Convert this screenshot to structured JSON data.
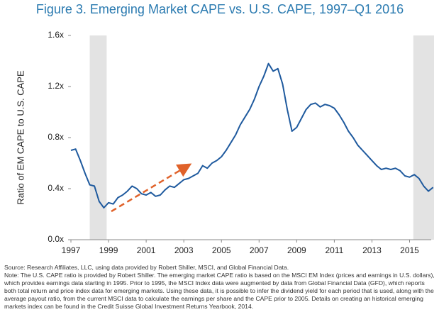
{
  "chart_data": {
    "type": "line",
    "title": "Figure 3. Emerging Market CAPE vs. U.S. CAPE, 1997–Q1 2016",
    "y_label": "Ratio of EM CAPE to U.S. CAPE",
    "x": [
      1997,
      1997.25,
      1997.5,
      1997.75,
      1998,
      1998.25,
      1998.5,
      1998.75,
      1999,
      1999.25,
      1999.5,
      1999.75,
      2000,
      2000.25,
      2000.5,
      2000.75,
      2001,
      2001.25,
      2001.5,
      2001.75,
      2002,
      2002.25,
      2002.5,
      2002.75,
      2003,
      2003.25,
      2003.5,
      2003.75,
      2004,
      2004.25,
      2004.5,
      2004.75,
      2005,
      2005.25,
      2005.5,
      2005.75,
      2006,
      2006.25,
      2006.5,
      2006.75,
      2007,
      2007.25,
      2007.5,
      2007.75,
      2008,
      2008.25,
      2008.5,
      2008.75,
      2009,
      2009.25,
      2009.5,
      2009.75,
      2010,
      2010.25,
      2010.5,
      2010.75,
      2011,
      2011.25,
      2011.5,
      2011.75,
      2012,
      2012.25,
      2012.5,
      2012.75,
      2013,
      2013.25,
      2013.5,
      2013.75,
      2014,
      2014.25,
      2014.5,
      2014.75,
      2015,
      2015.25,
      2015.5,
      2015.75,
      2016,
      2016.25
    ],
    "series": [
      {
        "name": "EM CAPE / U.S. CAPE",
        "color": "#1f5a9e",
        "values": [
          0.7,
          0.71,
          0.62,
          0.52,
          0.43,
          0.42,
          0.3,
          0.25,
          0.29,
          0.28,
          0.33,
          0.35,
          0.38,
          0.42,
          0.4,
          0.36,
          0.35,
          0.37,
          0.34,
          0.35,
          0.39,
          0.42,
          0.41,
          0.44,
          0.47,
          0.48,
          0.5,
          0.52,
          0.58,
          0.56,
          0.6,
          0.62,
          0.65,
          0.7,
          0.76,
          0.82,
          0.9,
          0.96,
          1.02,
          1.1,
          1.2,
          1.28,
          1.38,
          1.32,
          1.34,
          1.22,
          1.02,
          0.85,
          0.88,
          0.95,
          1.02,
          1.06,
          1.07,
          1.04,
          1.06,
          1.05,
          1.03,
          0.98,
          0.92,
          0.85,
          0.8,
          0.74,
          0.7,
          0.66,
          0.62,
          0.58,
          0.55,
          0.56,
          0.55,
          0.56,
          0.54,
          0.5,
          0.49,
          0.51,
          0.48,
          0.42,
          0.38,
          0.41
        ]
      }
    ],
    "shaded_regions": [
      [
        1998,
        1998.9
      ],
      [
        2015.2,
        2016.3
      ]
    ],
    "xlim": [
      1997,
      2016.3
    ],
    "xticks": [
      1997,
      1999,
      2001,
      2003,
      2005,
      2007,
      2009,
      2011,
      2013,
      2015
    ],
    "ylim": [
      0,
      1.6
    ],
    "yticks": [
      {
        "value": 0,
        "label": "0.0x"
      },
      {
        "value": 0.4,
        "label": "0.4x"
      },
      {
        "value": 0.8,
        "label": "0.8x"
      },
      {
        "value": 1.2,
        "label": "1.2x"
      },
      {
        "value": 1.6,
        "label": "1.6x"
      }
    ],
    "grid": false,
    "source": "Source: Research Affiliates, LLC, using data provided by Robert Shiller, MSCI, and Global Financial Data.",
    "note": "Note: The U.S. CAPE ratio is provided by Robert Shiller. The emerging market CAPE ratio is based on the MSCI EM Index (prices and earnings in U.S. dollars), which provides earnings data starting in 1995. Prior to 1995, the MSCI Index data were augmented by data from Global Financial Data (GFD), which reports both total return and price index data for emerging markets. Using these data, it is possible to infer the dividend yield for each period that is used, along with the average payout ratio, from the current MSCI data to calculate the earnings per share and the CAPE prior to 2005. Details on creating an historical emerging markets index can be found in the Credit Suisse Global Investment Returns Yearbook, 2014."
  }
}
